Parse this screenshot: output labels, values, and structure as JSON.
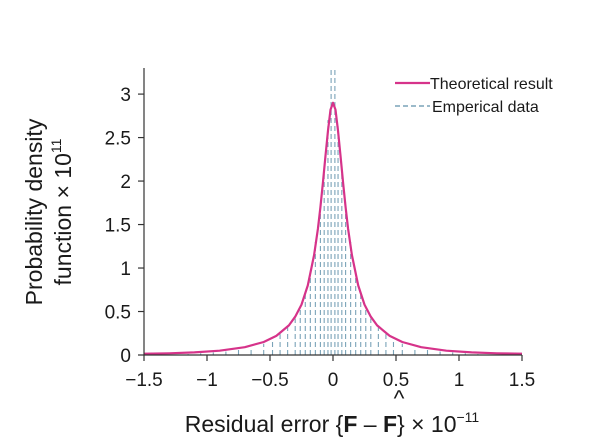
{
  "chart_data": {
    "type": "line",
    "title": "",
    "xlabel": {
      "prefix": "Residual error {",
      "symbol": "F",
      "minus": " – ",
      "symbol_hat": "F",
      "hat": "^",
      "suffix": "} × 10",
      "exponent": "−11"
    },
    "ylabel": {
      "line1": "Probability density",
      "line2_prefix": "function × 10",
      "line2_exponent": "11"
    },
    "xlim": [
      -1.5,
      1.5
    ],
    "ylim": [
      0,
      3.3
    ],
    "xticks": [
      -1.5,
      -1,
      -0.5,
      0,
      0.5,
      1,
      1.5
    ],
    "xtick_labels": [
      "−1.5",
      "−1",
      "−0.5",
      "0",
      "0.5",
      "1",
      "1.5"
    ],
    "yticks": [
      0,
      0.5,
      1,
      1.5,
      2,
      2.5,
      3
    ],
    "ytick_labels": [
      "0",
      "0.5",
      "1",
      "1.5",
      "2",
      "2.5",
      "3"
    ],
    "legend_position": "top-right",
    "colors": {
      "theoretical": "#d6338a",
      "empirical": "#7aa3b8",
      "axis": "#333333"
    },
    "series": [
      {
        "name": "Theoretical result",
        "style": "solid",
        "kind": "curve",
        "x": [
          -1.5,
          -1.3,
          -1.1,
          -0.9,
          -0.7,
          -0.55,
          -0.45,
          -0.35,
          -0.3,
          -0.25,
          -0.2,
          -0.15,
          -0.12,
          -0.1,
          -0.08,
          -0.06,
          -0.04,
          -0.02,
          0,
          0.02,
          0.04,
          0.06,
          0.08,
          0.1,
          0.12,
          0.15,
          0.2,
          0.25,
          0.3,
          0.35,
          0.45,
          0.55,
          0.7,
          0.9,
          1.1,
          1.3,
          1.5
        ],
        "y": [
          0.015,
          0.02,
          0.03,
          0.05,
          0.09,
          0.15,
          0.22,
          0.34,
          0.44,
          0.58,
          0.8,
          1.15,
          1.45,
          1.7,
          1.98,
          2.28,
          2.58,
          2.82,
          2.9,
          2.82,
          2.58,
          2.28,
          1.98,
          1.7,
          1.45,
          1.15,
          0.8,
          0.58,
          0.44,
          0.34,
          0.22,
          0.15,
          0.09,
          0.05,
          0.03,
          0.02,
          0.015
        ]
      },
      {
        "name": "Emperical data",
        "style": "dashed",
        "kind": "histogram",
        "x": [
          -1.15,
          -1.05,
          -0.95,
          -0.85,
          -0.75,
          -0.65,
          -0.55,
          -0.48,
          -0.42,
          -0.36,
          -0.3,
          -0.26,
          -0.22,
          -0.18,
          -0.14,
          -0.1,
          -0.07,
          -0.04,
          -0.015,
          0.015,
          0.04,
          0.07,
          0.1,
          0.14,
          0.18,
          0.22,
          0.26,
          0.3,
          0.36,
          0.42,
          0.48,
          0.55,
          0.65,
          0.75,
          0.85,
          0.95,
          1.05,
          1.15
        ],
        "y": [
          0.01,
          0.02,
          0.03,
          0.04,
          0.06,
          0.09,
          0.13,
          0.18,
          0.24,
          0.32,
          0.42,
          0.55,
          0.72,
          0.95,
          1.3,
          1.7,
          2.2,
          2.7,
          3.3,
          3.3,
          2.65,
          2.2,
          1.75,
          1.3,
          0.95,
          0.72,
          0.55,
          0.42,
          0.32,
          0.24,
          0.18,
          0.13,
          0.09,
          0.06,
          0.04,
          0.03,
          0.02,
          0.01
        ]
      }
    ]
  }
}
